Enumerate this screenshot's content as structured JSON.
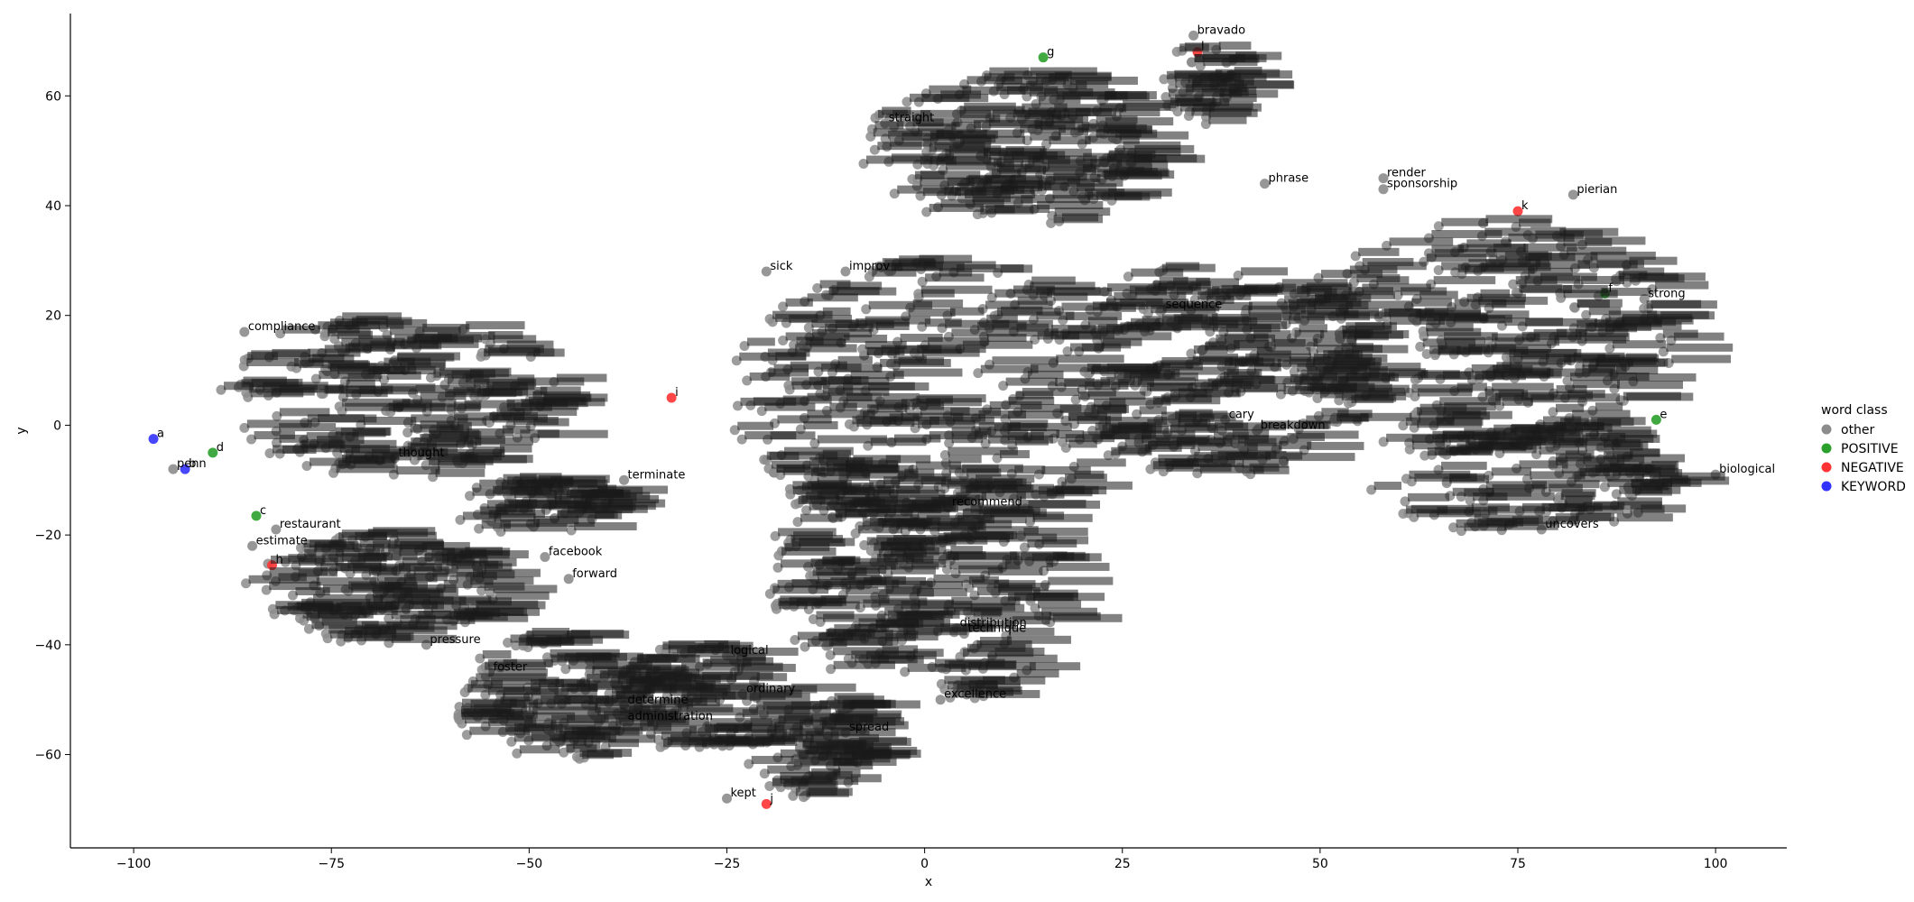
{
  "chart_data": {
    "type": "scatter",
    "title": "",
    "xlabel": "x",
    "ylabel": "y",
    "xlim": [
      -108,
      109
    ],
    "ylim": [
      -77,
      75
    ],
    "xticks": [
      -100,
      -75,
      -50,
      -25,
      0,
      25,
      50,
      75,
      100
    ],
    "yticks": [
      -60,
      -40,
      -20,
      0,
      20,
      40,
      60
    ],
    "grid": false,
    "legend": {
      "title": "word class",
      "placement": "right",
      "entries": [
        {
          "name": "other",
          "color": "#8c8c8c"
        },
        {
          "name": "POSITIVE",
          "color": "#2ca02c"
        },
        {
          "name": "NEGATIVE",
          "color": "#ff3333"
        },
        {
          "name": "KEYWORD",
          "color": "#3333ff"
        }
      ]
    },
    "colors": {
      "other": "#8c8c8c",
      "POSITIVE": "#2ca02c",
      "NEGATIVE": "#ff3333",
      "KEYWORD": "#3333ff"
    },
    "clusters": [
      {
        "cx": -68,
        "cy": 5,
        "rx": 22,
        "ry": 15,
        "n": 180
      },
      {
        "cx": -70,
        "cy": -30,
        "rx": 16,
        "ry": 10,
        "n": 130
      },
      {
        "cx": -48,
        "cy": -50,
        "rx": 12,
        "ry": 12,
        "n": 110
      },
      {
        "cx": -30,
        "cy": -50,
        "rx": 10,
        "ry": 10,
        "n": 80
      },
      {
        "cx": -15,
        "cy": -58,
        "rx": 8,
        "ry": 10,
        "n": 80
      },
      {
        "cx": -10,
        "cy": -25,
        "rx": 10,
        "ry": 20,
        "n": 120
      },
      {
        "cx": 5,
        "cy": -30,
        "rx": 12,
        "ry": 20,
        "n": 110
      },
      {
        "cx": 0,
        "cy": 5,
        "rx": 25,
        "ry": 25,
        "n": 260
      },
      {
        "cx": 10,
        "cy": 50,
        "rx": 18,
        "ry": 14,
        "n": 170
      },
      {
        "cx": 35,
        "cy": 10,
        "rx": 20,
        "ry": 20,
        "n": 200
      },
      {
        "cx": 70,
        "cy": 15,
        "rx": 25,
        "ry": 22,
        "n": 240
      },
      {
        "cx": 75,
        "cy": -10,
        "rx": 20,
        "ry": 10,
        "n": 110
      },
      {
        "cx": -50,
        "cy": -15,
        "rx": 10,
        "ry": 5,
        "n": 60
      },
      {
        "cx": 35,
        "cy": 62,
        "rx": 5,
        "ry": 8,
        "n": 40
      }
    ],
    "labeled_points": [
      {
        "word": "straight",
        "x": -5,
        "y": 55,
        "class": "other"
      },
      {
        "word": "render",
        "x": 58,
        "y": 45,
        "class": "other"
      },
      {
        "word": "sponsorship",
        "x": 58,
        "y": 43,
        "class": "other"
      },
      {
        "word": "phrase",
        "x": 43,
        "y": 44,
        "class": "other"
      },
      {
        "word": "pierian",
        "x": 82,
        "y": 42,
        "class": "other"
      },
      {
        "word": "sick",
        "x": -20,
        "y": 28,
        "class": "other"
      },
      {
        "word": "improv",
        "x": -10,
        "y": 28,
        "class": "other"
      },
      {
        "word": "sequence",
        "x": 30,
        "y": 21,
        "class": "other"
      },
      {
        "word": "compliance",
        "x": -86,
        "y": 17,
        "class": "other"
      },
      {
        "word": "restaurant",
        "x": -82,
        "y": -19,
        "class": "other"
      },
      {
        "word": "estimate",
        "x": -85,
        "y": -22,
        "class": "other"
      },
      {
        "word": "facebook",
        "x": -48,
        "y": -24,
        "class": "other"
      },
      {
        "word": "forward",
        "x": -45,
        "y": -28,
        "class": "other"
      },
      {
        "word": "pressure",
        "x": -63,
        "y": -40,
        "class": "other"
      },
      {
        "word": "foster",
        "x": -55,
        "y": -45,
        "class": "other"
      },
      {
        "word": "determine",
        "x": -38,
        "y": -51,
        "class": "other"
      },
      {
        "word": "administration",
        "x": -38,
        "y": -54,
        "class": "other"
      },
      {
        "word": "ordinary",
        "x": -23,
        "y": -49,
        "class": "other"
      },
      {
        "word": "logical",
        "x": -25,
        "y": -42,
        "class": "other"
      },
      {
        "word": "spread",
        "x": -10,
        "y": -56,
        "class": "other"
      },
      {
        "word": "recommend",
        "x": 3,
        "y": -15,
        "class": "other"
      },
      {
        "word": "distribution",
        "x": 4,
        "y": -37,
        "class": "other"
      },
      {
        "word": "technique",
        "x": 5,
        "y": -38,
        "class": "other"
      },
      {
        "word": "excellence",
        "x": 2,
        "y": -50,
        "class": "other"
      },
      {
        "word": "cary",
        "x": 38,
        "y": 1,
        "class": "other"
      },
      {
        "word": "breakdown",
        "x": 42,
        "y": -1,
        "class": "other"
      },
      {
        "word": "uncovers",
        "x": 78,
        "y": -19,
        "class": "other"
      },
      {
        "word": "biological",
        "x": 100,
        "y": -9,
        "class": "other"
      },
      {
        "word": "strong",
        "x": 91,
        "y": 23,
        "class": "other"
      },
      {
        "word": "bravado",
        "x": 34,
        "y": 71,
        "class": "other"
      },
      {
        "word": "thought",
        "x": -67,
        "y": -6,
        "class": "other"
      },
      {
        "word": "terminate",
        "x": -38,
        "y": -10,
        "class": "other"
      },
      {
        "word": "penn",
        "x": -95,
        "y": -8,
        "class": "other"
      },
      {
        "word": "kept",
        "x": -25,
        "y": -68,
        "class": "other"
      },
      {
        "word": "a",
        "x": -97.5,
        "y": -2.5,
        "class": "KEYWORD"
      },
      {
        "word": "b",
        "x": -93.5,
        "y": -8,
        "class": "KEYWORD"
      },
      {
        "word": "c",
        "x": -84.5,
        "y": -16.5,
        "class": "POSITIVE"
      },
      {
        "word": "d",
        "x": -90,
        "y": -5,
        "class": "POSITIVE"
      },
      {
        "word": "e",
        "x": 92.5,
        "y": 1,
        "class": "POSITIVE"
      },
      {
        "word": "f",
        "x": 86,
        "y": 24,
        "class": "POSITIVE"
      },
      {
        "word": "g",
        "x": 15,
        "y": 67,
        "class": "POSITIVE"
      },
      {
        "word": "h",
        "x": -82.5,
        "y": -25.5,
        "class": "NEGATIVE"
      },
      {
        "word": "i",
        "x": -32,
        "y": 5,
        "class": "NEGATIVE"
      },
      {
        "word": "j",
        "x": -20,
        "y": -69,
        "class": "NEGATIVE"
      },
      {
        "word": "k",
        "x": 75,
        "y": 39,
        "class": "NEGATIVE"
      },
      {
        "word": "l",
        "x": 34.5,
        "y": 68,
        "class": "NEGATIVE"
      }
    ]
  }
}
